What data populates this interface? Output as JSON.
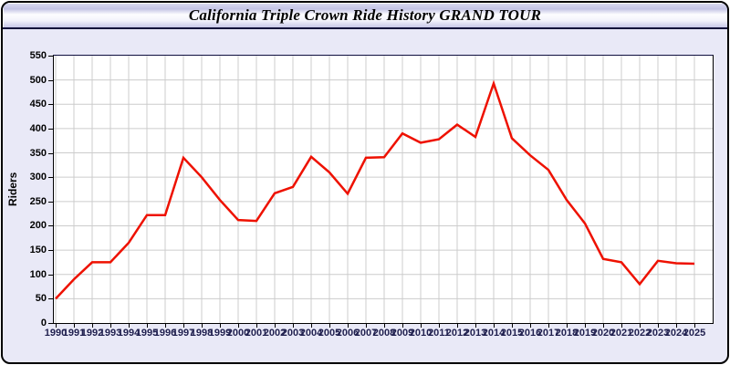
{
  "window": {
    "title": "California Triple Crown Ride History GRAND TOUR"
  },
  "chart": {
    "ylabel": "Riders",
    "colors": {
      "line": "#ee1100",
      "grid": "#cccccc",
      "plot_background": "#ffffff",
      "panel_background": "#e9e9f7",
      "x_axis_text": "#1f1f4e",
      "y_axis_text": "#000000"
    }
  },
  "chart_data": {
    "type": "line",
    "title": "California Triple Crown Ride History GRAND TOUR",
    "xlabel": "",
    "ylabel": "Riders",
    "x": [
      1990,
      1991,
      1992,
      1993,
      1994,
      1995,
      1996,
      1997,
      1998,
      1999,
      2000,
      2001,
      2002,
      2003,
      2004,
      2005,
      2006,
      2007,
      2008,
      2009,
      2010,
      2011,
      2012,
      2013,
      2014,
      2015,
      2016,
      2017,
      2018,
      2019,
      2020,
      2021,
      2022,
      2023,
      2024,
      2025
    ],
    "series": [
      {
        "name": "Riders",
        "color": "#ee1100",
        "values": [
          50,
          90,
          125,
          125,
          165,
          222,
          222,
          340,
          300,
          253,
          212,
          210,
          267,
          280,
          342,
          310,
          266,
          340,
          341,
          390,
          371,
          378,
          408,
          383,
          493,
          380,
          345,
          315,
          253,
          205,
          132,
          125,
          80,
          128,
          123,
          122
        ]
      }
    ],
    "ylim": [
      0,
      550
    ],
    "ytick_step": 50,
    "grid": true,
    "legend": false
  }
}
